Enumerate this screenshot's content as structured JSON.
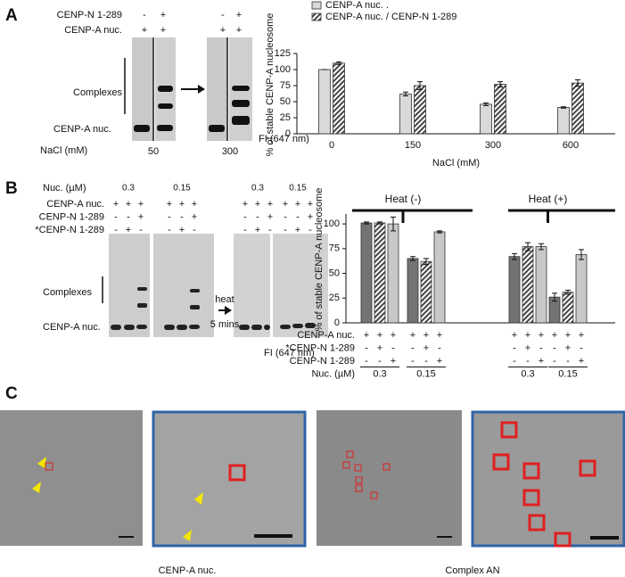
{
  "panel_labels": [
    "A",
    "B",
    "C"
  ],
  "a_gel": {
    "rows": [
      {
        "label": "CENP-N 1-289",
        "cells": [
          "-",
          "+",
          "-",
          "+"
        ]
      },
      {
        "label": "CENP-A nuc.",
        "cells": [
          "+",
          "+",
          "+",
          "+"
        ]
      }
    ],
    "complexes": "Complexes",
    "band": "CENP-A nuc.",
    "salt_label": "NaCl (mM)",
    "salts": [
      "50",
      "300"
    ],
    "fi": "FI (647 nm)"
  },
  "b_gel": {
    "nuc_label": "Nuc. (µM)",
    "nuc": [
      "0.3",
      "0.15",
      "0.3",
      "0.15"
    ],
    "rows": [
      {
        "label": "CENP-A nuc.",
        "cells": [
          "+",
          "+",
          "+",
          "+",
          "+",
          "+",
          "+",
          "+",
          "+",
          "+",
          "+",
          "+"
        ]
      },
      {
        "label": "CENP-N 1-289",
        "cells": [
          "-",
          "-",
          "+",
          "-",
          "-",
          "+",
          "-",
          "-",
          "+",
          "-",
          "-",
          "+"
        ]
      },
      {
        "label": "*CENP-N 1-289",
        "cells": [
          "-",
          "+",
          "-",
          "-",
          "+",
          "-",
          "-",
          "+",
          "-",
          "-",
          "+",
          "-"
        ]
      }
    ],
    "complexes": "Complexes",
    "band": "CENP-A nuc.",
    "heat": "heat",
    "time": "5 mins",
    "fi": "FI (647 nm)"
  },
  "c_captions": [
    "CENP-A nuc.",
    "Complex AN"
  ],
  "chart_data": [
    {
      "type": "bar",
      "ylabel": "% of stable CENP-A nucleosome",
      "xlabel": "NaCl (mM)",
      "categories": [
        "0",
        "150",
        "300",
        "600"
      ],
      "ylim": [
        0,
        125
      ],
      "yticks": [
        0,
        25,
        50,
        75,
        100,
        125
      ],
      "series": [
        {
          "name": "CENP-A nuc. .",
          "color": "#d9d9d9",
          "values": [
            100,
            62,
            46,
            41
          ],
          "errors": [
            0,
            3,
            2,
            1
          ]
        },
        {
          "name": "CENP-A nuc. / CENP-N 1-289",
          "color": "#555555",
          "pattern": "hatch",
          "values": [
            110,
            75,
            77,
            79
          ],
          "errors": [
            2,
            6,
            4,
            5
          ]
        }
      ],
      "legend": "top"
    },
    {
      "type": "bar",
      "ylabel": "% of stable CENP-A nucleosome",
      "categories": [
        "0.3",
        "0.15",
        "0.3",
        "0.15"
      ],
      "category_label": "Nuc. (µM)",
      "ylim": [
        0,
        110
      ],
      "yticks": [
        0,
        25,
        50,
        75,
        100
      ],
      "series": [
        {
          "color": "#737373",
          "values": [
            101,
            65,
            67,
            26
          ],
          "errors": [
            1,
            2,
            3,
            4
          ]
        },
        {
          "color": "#555555",
          "pattern": "hatch",
          "values": [
            101,
            62,
            77,
            31
          ],
          "errors": [
            1,
            3,
            4,
            2
          ]
        },
        {
          "color": "#c8c8c8",
          "values": [
            100,
            92,
            77,
            69
          ],
          "errors": [
            7,
            1,
            3,
            5
          ]
        }
      ],
      "groups": [
        "Heat (-)",
        "Heat (+)"
      ],
      "table": [
        {
          "label": "CENP-A nuc.",
          "cells": [
            "+",
            "+",
            "+",
            "+",
            "+",
            "+",
            "+",
            "+",
            "+",
            "+",
            "+",
            "+"
          ]
        },
        {
          "label": "*CENP-N 1-289",
          "cells": [
            "-",
            "+",
            "-",
            "-",
            "+",
            "-",
            "-",
            "+",
            "-",
            "-",
            "+",
            "-"
          ]
        },
        {
          "label": "CENP-N 1-289",
          "cells": [
            "-",
            "-",
            "+",
            "-",
            "-",
            "+",
            "-",
            "-",
            "+",
            "-",
            "-",
            "+"
          ]
        }
      ]
    }
  ]
}
